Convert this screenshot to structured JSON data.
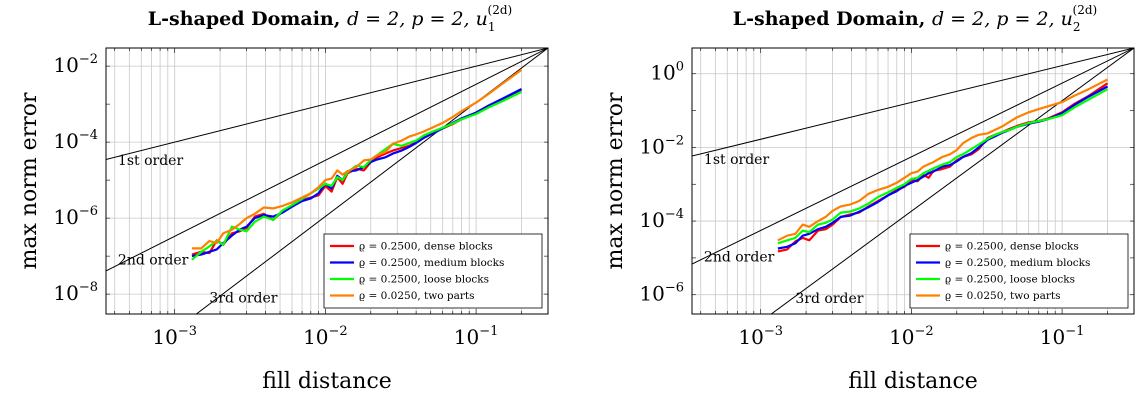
{
  "chart_data": [
    {
      "type": "line",
      "title": "L-shaped Domain,",
      "title_math": "d = 2, p = 2, u",
      "title_sub": "1",
      "title_sup": "(2d)",
      "xlabel": "fill distance",
      "ylabel": "max norm error",
      "xscale": "log",
      "yscale": "log",
      "xlim": [
        0.00035,
        0.3
      ],
      "ylim": [
        3e-09,
        0.03
      ],
      "x_ticks": [
        {
          "base": "10",
          "exp": "−3",
          "value": 0.001
        },
        {
          "base": "10",
          "exp": "−2",
          "value": 0.01
        },
        {
          "base": "10",
          "exp": "−1",
          "value": 0.1
        }
      ],
      "y_ticks": [
        {
          "base": "10",
          "exp": "−2",
          "value": 0.01
        },
        {
          "base": "10",
          "exp": "−4",
          "value": 0.0001
        },
        {
          "base": "10",
          "exp": "−6",
          "value": 1e-06
        },
        {
          "base": "10",
          "exp": "−8",
          "value": 1e-08
        }
      ],
      "grid": true,
      "legend_position": "bottom-right",
      "reference_lines": [
        {
          "label": "1st order",
          "order": 1,
          "anchor": [
            0.3,
            0.03
          ],
          "label_at": [
            0.00042,
            2.5e-05
          ]
        },
        {
          "label": "2nd order",
          "order": 2,
          "anchor": [
            0.3,
            0.03
          ],
          "label_at": [
            0.00042,
            6e-08
          ]
        },
        {
          "label": "3rd order",
          "order": 3,
          "anchor": [
            0.3,
            0.03
          ],
          "label_at": [
            0.0017,
            6e-09
          ]
        }
      ],
      "series": [
        {
          "name": "ϱ = 0.2500, dense blocks",
          "color": "#ff0000",
          "x": [
            0.0013,
            0.0015,
            0.0017,
            0.0019,
            0.0021,
            0.0024,
            0.0027,
            0.003,
            0.0034,
            0.0039,
            0.0045,
            0.0052,
            0.006,
            0.007,
            0.008,
            0.009,
            0.01,
            0.011,
            0.012,
            0.013,
            0.014,
            0.016,
            0.018,
            0.02,
            0.022,
            0.025,
            0.028,
            0.032,
            0.036,
            0.04,
            0.045,
            0.05,
            0.06,
            0.07,
            0.08,
            0.1,
            0.12,
            0.15,
            0.2
          ],
          "y": [
            1.1e-07,
            1.3e-07,
            1.2e-07,
            2.6e-07,
            2e-07,
            4e-07,
            4.5e-07,
            5.5e-07,
            1.1e-06,
            1.3e-06,
            9e-07,
            1.5e-06,
            2e-06,
            3e-06,
            3.5e-06,
            4e-06,
            7e-06,
            5e-06,
            1.2e-05,
            8e-06,
            1.5e-05,
            2e-05,
            1.8e-05,
            3e-05,
            4e-05,
            5e-05,
            6e-05,
            7e-05,
            8e-05,
            0.0001,
            0.00013,
            0.00016,
            0.00023,
            0.0003,
            0.0004,
            0.0006,
            0.0009,
            0.0013,
            0.0024
          ]
        },
        {
          "name": "ϱ = 0.2500, medium blocks",
          "color": "#0000ff",
          "x": [
            0.0013,
            0.0015,
            0.0017,
            0.0019,
            0.0021,
            0.0024,
            0.0027,
            0.003,
            0.0034,
            0.0039,
            0.0045,
            0.0052,
            0.006,
            0.007,
            0.008,
            0.009,
            0.01,
            0.011,
            0.012,
            0.013,
            0.014,
            0.016,
            0.018,
            0.02,
            0.022,
            0.025,
            0.028,
            0.032,
            0.036,
            0.04,
            0.045,
            0.05,
            0.06,
            0.07,
            0.08,
            0.1,
            0.12,
            0.15,
            0.2
          ],
          "y": [
            1e-07,
            1.1e-07,
            1.3e-07,
            1.5e-07,
            2.2e-07,
            3.5e-07,
            5e-07,
            6e-07,
            1e-06,
            1.2e-06,
            1.1e-06,
            1.4e-06,
            2e-06,
            2.8e-06,
            3.3e-06,
            4.5e-06,
            8e-06,
            6e-06,
            1.3e-05,
            1e-05,
            1.7e-05,
            1.8e-05,
            2.2e-05,
            3e-05,
            3.5e-05,
            4e-05,
            5e-05,
            6e-05,
            7.5e-05,
            9.5e-05,
            0.00013,
            0.00016,
            0.00023,
            0.00032,
            0.00042,
            0.0006,
            0.0009,
            0.0014,
            0.0025
          ]
        },
        {
          "name": "ϱ = 0.2500, loose blocks",
          "color": "#00ff00",
          "x": [
            0.0013,
            0.0015,
            0.0017,
            0.0019,
            0.0021,
            0.0024,
            0.0027,
            0.003,
            0.0034,
            0.0039,
            0.0045,
            0.0052,
            0.006,
            0.007,
            0.008,
            0.009,
            0.01,
            0.011,
            0.012,
            0.013,
            0.014,
            0.016,
            0.018,
            0.02,
            0.022,
            0.025,
            0.028,
            0.032,
            0.036,
            0.04,
            0.045,
            0.05,
            0.06,
            0.07,
            0.08,
            0.1,
            0.12,
            0.15,
            0.2
          ],
          "y": [
            8e-08,
            1.3e-07,
            1.8e-07,
            2.5e-07,
            2e-07,
            6e-07,
            5e-07,
            4.5e-07,
            8e-07,
            1.1e-06,
            9e-07,
            1.6e-06,
            2.2e-06,
            3.2e-06,
            4.5e-06,
            6e-06,
            8e-06,
            7e-06,
            1.2e-05,
            1e-05,
            1.6e-05,
            2.4e-05,
            2.2e-05,
            3.4e-05,
            4.5e-05,
            6.5e-05,
            9e-05,
            8e-05,
            9.5e-05,
            0.00011,
            0.00015,
            0.00018,
            0.00024,
            0.00031,
            0.0004,
            0.00055,
            0.0008,
            0.0012,
            0.0021
          ]
        },
        {
          "name": "ϱ = 0.0250, two parts",
          "color": "#ff8000",
          "x": [
            0.0013,
            0.0015,
            0.0017,
            0.0019,
            0.0021,
            0.0024,
            0.0027,
            0.003,
            0.0034,
            0.0039,
            0.0045,
            0.0052,
            0.006,
            0.007,
            0.008,
            0.009,
            0.01,
            0.011,
            0.012,
            0.013,
            0.014,
            0.016,
            0.018,
            0.02,
            0.022,
            0.025,
            0.028,
            0.032,
            0.036,
            0.04,
            0.045,
            0.05,
            0.06,
            0.07,
            0.08,
            0.1,
            0.12,
            0.15,
            0.2
          ],
          "y": [
            1.6e-07,
            1.6e-07,
            2.5e-07,
            2.2e-07,
            4e-07,
            5e-07,
            7e-07,
            1e-06,
            1.3e-06,
            1.9e-06,
            1.8e-06,
            2.1e-06,
            2.6e-06,
            3.5e-06,
            4.5e-06,
            6.5e-06,
            1e-05,
            1.1e-05,
            1.8e-05,
            1.4e-05,
            1.7e-05,
            2.2e-05,
            3.3e-05,
            3.5e-05,
            4.5e-05,
            5.5e-05,
            9e-05,
            0.00011,
            0.00014,
            0.00016,
            0.00019,
            0.00023,
            0.00032,
            0.00046,
            0.00065,
            0.0011,
            0.0018,
            0.0035,
            0.008
          ]
        }
      ]
    },
    {
      "type": "line",
      "title": "L-shaped Domain,",
      "title_math": "d = 2, p = 2, u",
      "title_sub": "2",
      "title_sup": "(2d)",
      "xlabel": "fill distance",
      "ylabel": "max norm error",
      "xscale": "log",
      "yscale": "log",
      "xlim": [
        0.00035,
        0.3
      ],
      "ylim": [
        3e-07,
        5
      ],
      "x_ticks": [
        {
          "base": "10",
          "exp": "−3",
          "value": 0.001
        },
        {
          "base": "10",
          "exp": "−2",
          "value": 0.01
        },
        {
          "base": "10",
          "exp": "−1",
          "value": 0.1
        }
      ],
      "y_ticks": [
        {
          "base": "10",
          "exp": "0",
          "value": 1
        },
        {
          "base": "10",
          "exp": "−2",
          "value": 0.01
        },
        {
          "base": "10",
          "exp": "−4",
          "value": 0.0001
        },
        {
          "base": "10",
          "exp": "−6",
          "value": 1e-06
        }
      ],
      "grid": true,
      "legend_position": "bottom-right",
      "reference_lines": [
        {
          "label": "1st order",
          "order": 1,
          "anchor": [
            0.3,
            5
          ],
          "label_at": [
            0.00042,
            0.0035
          ]
        },
        {
          "label": "2nd order",
          "order": 2,
          "anchor": [
            0.3,
            5
          ],
          "label_at": [
            0.00042,
            8e-06
          ]
        },
        {
          "label": "3rd order",
          "order": 3,
          "anchor": [
            0.3,
            5
          ],
          "label_at": [
            0.0017,
            6e-07
          ]
        }
      ],
      "series": [
        {
          "name": "ϱ = 0.2500, dense blocks",
          "color": "#ff0000",
          "x": [
            0.0013,
            0.0015,
            0.0017,
            0.0019,
            0.0021,
            0.0024,
            0.0027,
            0.003,
            0.0034,
            0.0039,
            0.0045,
            0.0052,
            0.006,
            0.007,
            0.008,
            0.009,
            0.01,
            0.011,
            0.012,
            0.013,
            0.014,
            0.016,
            0.018,
            0.02,
            0.022,
            0.025,
            0.028,
            0.032,
            0.036,
            0.04,
            0.045,
            0.05,
            0.06,
            0.07,
            0.08,
            0.1,
            0.12,
            0.15,
            0.2
          ],
          "y": [
            1.5e-05,
            1.7e-05,
            2.8e-05,
            3.5e-05,
            3e-05,
            5.5e-05,
            6e-05,
            8e-05,
            0.00013,
            0.00015,
            0.00017,
            0.00025,
            0.00035,
            0.0005,
            0.0007,
            0.00085,
            0.0013,
            0.0012,
            0.0018,
            0.0015,
            0.0023,
            0.0026,
            0.003,
            0.0045,
            0.0055,
            0.0065,
            0.009,
            0.018,
            0.022,
            0.026,
            0.032,
            0.038,
            0.048,
            0.052,
            0.06,
            0.09,
            0.15,
            0.25,
            0.55
          ]
        },
        {
          "name": "ϱ = 0.2500, medium blocks",
          "color": "#0000ff",
          "x": [
            0.0013,
            0.0015,
            0.0017,
            0.0019,
            0.0021,
            0.0024,
            0.0027,
            0.003,
            0.0034,
            0.0039,
            0.0045,
            0.0052,
            0.006,
            0.007,
            0.008,
            0.009,
            0.01,
            0.011,
            0.012,
            0.013,
            0.014,
            0.016,
            0.018,
            0.02,
            0.022,
            0.025,
            0.028,
            0.032,
            0.036,
            0.04,
            0.045,
            0.05,
            0.06,
            0.07,
            0.08,
            0.1,
            0.12,
            0.15,
            0.2
          ],
          "y": [
            1.8e-05,
            2e-05,
            2.5e-05,
            4e-05,
            4.5e-05,
            6e-05,
            7e-05,
            9e-05,
            0.00013,
            0.00014,
            0.00018,
            0.00024,
            0.00033,
            0.0005,
            0.00065,
            0.0009,
            0.0011,
            0.0013,
            0.0016,
            0.002,
            0.0022,
            0.003,
            0.0033,
            0.0042,
            0.0055,
            0.007,
            0.01,
            0.016,
            0.02,
            0.025,
            0.03,
            0.036,
            0.044,
            0.05,
            0.058,
            0.085,
            0.14,
            0.24,
            0.45
          ]
        },
        {
          "name": "ϱ = 0.2500, loose blocks",
          "color": "#00ff00",
          "x": [
            0.0013,
            0.0015,
            0.0017,
            0.0019,
            0.0021,
            0.0024,
            0.0027,
            0.003,
            0.0034,
            0.0039,
            0.0045,
            0.0052,
            0.006,
            0.007,
            0.008,
            0.009,
            0.01,
            0.011,
            0.012,
            0.013,
            0.014,
            0.016,
            0.018,
            0.02,
            0.022,
            0.025,
            0.028,
            0.032,
            0.036,
            0.04,
            0.045,
            0.05,
            0.06,
            0.07,
            0.08,
            0.1,
            0.12,
            0.15,
            0.2
          ],
          "y": [
            2.5e-05,
            3e-05,
            3.5e-05,
            5.5e-05,
            5e-05,
            8e-05,
            9e-05,
            0.00011,
            0.00017,
            0.00018,
            0.00022,
            0.0003,
            0.00045,
            0.0006,
            0.0008,
            0.001,
            0.0014,
            0.0015,
            0.002,
            0.0023,
            0.0027,
            0.0034,
            0.004,
            0.0055,
            0.0065,
            0.009,
            0.012,
            0.017,
            0.022,
            0.026,
            0.03,
            0.036,
            0.046,
            0.052,
            0.058,
            0.075,
            0.12,
            0.2,
            0.38
          ]
        },
        {
          "name": "ϱ = 0.0250, two parts",
          "color": "#ff8000",
          "x": [
            0.0013,
            0.0015,
            0.0017,
            0.0019,
            0.0021,
            0.0024,
            0.0027,
            0.003,
            0.0034,
            0.0039,
            0.0045,
            0.0052,
            0.006,
            0.007,
            0.008,
            0.009,
            0.01,
            0.011,
            0.012,
            0.013,
            0.014,
            0.016,
            0.018,
            0.02,
            0.022,
            0.025,
            0.028,
            0.032,
            0.036,
            0.04,
            0.045,
            0.05,
            0.06,
            0.07,
            0.08,
            0.1,
            0.12,
            0.15,
            0.2
          ],
          "y": [
            3e-05,
            4e-05,
            4.5e-05,
            8e-05,
            7e-05,
            0.0001,
            0.00013,
            0.00019,
            0.00025,
            0.00028,
            0.00035,
            0.00055,
            0.0007,
            0.00085,
            0.0011,
            0.0015,
            0.002,
            0.0022,
            0.003,
            0.0035,
            0.004,
            0.0055,
            0.0065,
            0.0085,
            0.013,
            0.018,
            0.022,
            0.024,
            0.03,
            0.037,
            0.05,
            0.065,
            0.09,
            0.11,
            0.13,
            0.17,
            0.25,
            0.38,
            0.7
          ]
        }
      ]
    }
  ]
}
